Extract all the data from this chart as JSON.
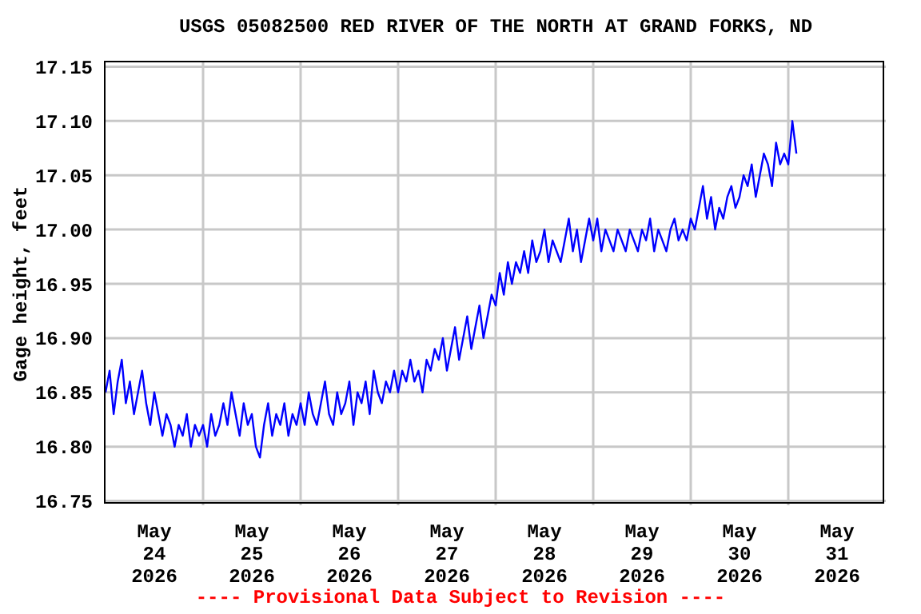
{
  "chart_data": {
    "type": "line",
    "title": "USGS 05082500 RED RIVER OF THE NORTH AT GRAND FORKS, ND",
    "ylabel": "Gage height, feet",
    "annotations": [
      "---- Provisional Data Subject to Revision ----"
    ],
    "grid": true,
    "marker": "none",
    "line_style": "solid",
    "xlim": [
      "2026-05-24T00:00",
      "2026-06-01T00:00"
    ],
    "xticks": [
      {
        "value": "2026-05-24T12:00",
        "label": "May\n24\n2026"
      },
      {
        "value": "2026-05-25T00:00",
        "label": null
      },
      {
        "value": "2026-05-25T12:00",
        "label": "May\n25\n2026"
      },
      {
        "value": "2026-05-26T00:00",
        "label": null
      },
      {
        "value": "2026-05-26T12:00",
        "label": "May\n26\n2026"
      },
      {
        "value": "2026-05-27T00:00",
        "label": null
      },
      {
        "value": "2026-05-27T12:00",
        "label": "May\n27\n2026"
      },
      {
        "value": "2026-05-28T00:00",
        "label": null
      },
      {
        "value": "2026-05-28T12:00",
        "label": "May\n28\n2026"
      },
      {
        "value": "2026-05-29T00:00",
        "label": null
      },
      {
        "value": "2026-05-29T12:00",
        "label": "May\n29\n2026"
      },
      {
        "value": "2026-05-30T00:00",
        "label": null
      },
      {
        "value": "2026-05-30T12:00",
        "label": "May\n30\n2026"
      },
      {
        "value": "2026-05-31T00:00",
        "label": null
      },
      {
        "value": "2026-05-31T12:00",
        "label": "May\n31\n2026"
      }
    ],
    "ylim": [
      16.746,
      17.154
    ],
    "yticks": [
      {
        "value": 16.75,
        "label": "16.75"
      },
      {
        "value": 16.8,
        "label": "16.80"
      },
      {
        "value": 16.85,
        "label": "16.85"
      },
      {
        "value": 16.9,
        "label": "16.90"
      },
      {
        "value": 16.95,
        "label": "16.95"
      },
      {
        "value": 17,
        "label": "17.00"
      },
      {
        "value": 17.05,
        "label": "17.05"
      },
      {
        "value": 17.1,
        "label": "17.10"
      },
      {
        "value": 17.15,
        "label": "17.15"
      }
    ],
    "series": [
      {
        "color": "#0000ff",
        "x": [
          "2026-05-24T00:00",
          "2026-05-24T01:00",
          "2026-05-24T02:00",
          "2026-05-24T03:00",
          "2026-05-24T04:00",
          "2026-05-24T05:00",
          "2026-05-24T06:00",
          "2026-05-24T07:00",
          "2026-05-24T08:00",
          "2026-05-24T09:00",
          "2026-05-24T10:00",
          "2026-05-24T11:00",
          "2026-05-24T12:00",
          "2026-05-24T13:00",
          "2026-05-24T14:00",
          "2026-05-24T15:00",
          "2026-05-24T16:00",
          "2026-05-24T17:00",
          "2026-05-24T18:00",
          "2026-05-24T19:00",
          "2026-05-24T20:00",
          "2026-05-24T21:00",
          "2026-05-24T22:00",
          "2026-05-24T23:00",
          "2026-05-25T00:00",
          "2026-05-25T01:00",
          "2026-05-25T02:00",
          "2026-05-25T03:00",
          "2026-05-25T04:00",
          "2026-05-25T05:00",
          "2026-05-25T06:00",
          "2026-05-25T07:00",
          "2026-05-25T08:00",
          "2026-05-25T09:00",
          "2026-05-25T10:00",
          "2026-05-25T11:00",
          "2026-05-25T12:00",
          "2026-05-25T13:00",
          "2026-05-25T14:00",
          "2026-05-25T15:00",
          "2026-05-25T16:00",
          "2026-05-25T17:00",
          "2026-05-25T18:00",
          "2026-05-25T19:00",
          "2026-05-25T20:00",
          "2026-05-25T21:00",
          "2026-05-25T22:00",
          "2026-05-25T23:00",
          "2026-05-26T00:00",
          "2026-05-26T01:00",
          "2026-05-26T02:00",
          "2026-05-26T03:00",
          "2026-05-26T04:00",
          "2026-05-26T05:00",
          "2026-05-26T06:00",
          "2026-05-26T07:00",
          "2026-05-26T08:00",
          "2026-05-26T09:00",
          "2026-05-26T10:00",
          "2026-05-26T11:00",
          "2026-05-26T12:00",
          "2026-05-26T13:00",
          "2026-05-26T14:00",
          "2026-05-26T15:00",
          "2026-05-26T16:00",
          "2026-05-26T17:00",
          "2026-05-26T18:00",
          "2026-05-26T19:00",
          "2026-05-26T20:00",
          "2026-05-26T21:00",
          "2026-05-26T22:00",
          "2026-05-26T23:00",
          "2026-05-27T00:00",
          "2026-05-27T01:00",
          "2026-05-27T02:00",
          "2026-05-27T03:00",
          "2026-05-27T04:00",
          "2026-05-27T05:00",
          "2026-05-27T06:00",
          "2026-05-27T07:00",
          "2026-05-27T08:00",
          "2026-05-27T09:00",
          "2026-05-27T10:00",
          "2026-05-27T11:00",
          "2026-05-27T12:00",
          "2026-05-27T13:00",
          "2026-05-27T14:00",
          "2026-05-27T15:00",
          "2026-05-27T16:00",
          "2026-05-27T17:00",
          "2026-05-27T18:00",
          "2026-05-27T19:00",
          "2026-05-27T20:00",
          "2026-05-27T21:00",
          "2026-05-27T22:00",
          "2026-05-27T23:00",
          "2026-05-28T00:00",
          "2026-05-28T01:00",
          "2026-05-28T02:00",
          "2026-05-28T03:00",
          "2026-05-28T04:00",
          "2026-05-28T05:00",
          "2026-05-28T06:00",
          "2026-05-28T07:00",
          "2026-05-28T08:00",
          "2026-05-28T09:00",
          "2026-05-28T10:00",
          "2026-05-28T11:00",
          "2026-05-28T12:00",
          "2026-05-28T13:00",
          "2026-05-28T14:00",
          "2026-05-28T15:00",
          "2026-05-28T16:00",
          "2026-05-28T17:00",
          "2026-05-28T18:00",
          "2026-05-28T19:00",
          "2026-05-28T20:00",
          "2026-05-28T21:00",
          "2026-05-28T22:00",
          "2026-05-28T23:00",
          "2026-05-29T00:00",
          "2026-05-29T01:00",
          "2026-05-29T02:00",
          "2026-05-29T03:00",
          "2026-05-29T04:00",
          "2026-05-29T05:00",
          "2026-05-29T06:00",
          "2026-05-29T07:00",
          "2026-05-29T08:00",
          "2026-05-29T09:00",
          "2026-05-29T10:00",
          "2026-05-29T11:00",
          "2026-05-29T12:00",
          "2026-05-29T13:00",
          "2026-05-29T14:00",
          "2026-05-29T15:00",
          "2026-05-29T16:00",
          "2026-05-29T17:00",
          "2026-05-29T18:00",
          "2026-05-29T19:00",
          "2026-05-29T20:00",
          "2026-05-29T21:00",
          "2026-05-29T22:00",
          "2026-05-29T23:00",
          "2026-05-30T00:00",
          "2026-05-30T01:00",
          "2026-05-30T02:00",
          "2026-05-30T03:00",
          "2026-05-30T04:00",
          "2026-05-30T05:00",
          "2026-05-30T06:00",
          "2026-05-30T07:00",
          "2026-05-30T08:00",
          "2026-05-30T09:00",
          "2026-05-30T10:00",
          "2026-05-30T11:00",
          "2026-05-30T12:00",
          "2026-05-30T13:00",
          "2026-05-30T14:00",
          "2026-05-30T15:00",
          "2026-05-30T16:00",
          "2026-05-30T17:00",
          "2026-05-30T18:00",
          "2026-05-30T19:00",
          "2026-05-30T20:00",
          "2026-05-30T21:00",
          "2026-05-30T22:00",
          "2026-05-30T23:00",
          "2026-05-31T00:00",
          "2026-05-31T01:00",
          "2026-05-31T02:00"
        ],
        "values": [
          16.85,
          16.87,
          16.83,
          16.86,
          16.88,
          16.84,
          16.86,
          16.83,
          16.85,
          16.87,
          16.84,
          16.82,
          16.85,
          16.83,
          16.81,
          16.83,
          16.82,
          16.8,
          16.82,
          16.81,
          16.83,
          16.8,
          16.82,
          16.81,
          16.82,
          16.8,
          16.83,
          16.81,
          16.82,
          16.84,
          16.82,
          16.85,
          16.83,
          16.81,
          16.84,
          16.82,
          16.83,
          16.8,
          16.79,
          16.82,
          16.84,
          16.81,
          16.83,
          16.82,
          16.84,
          16.81,
          16.83,
          16.82,
          16.84,
          16.82,
          16.85,
          16.83,
          16.82,
          16.84,
          16.86,
          16.83,
          16.82,
          16.85,
          16.83,
          16.84,
          16.86,
          16.82,
          16.85,
          16.84,
          16.86,
          16.83,
          16.87,
          16.85,
          16.84,
          16.86,
          16.85,
          16.87,
          16.85,
          16.87,
          16.86,
          16.88,
          16.86,
          16.87,
          16.85,
          16.88,
          16.87,
          16.89,
          16.88,
          16.9,
          16.87,
          16.89,
          16.91,
          16.88,
          16.9,
          16.92,
          16.89,
          16.91,
          16.93,
          16.9,
          16.92,
          16.94,
          16.93,
          16.96,
          16.94,
          16.97,
          16.95,
          16.97,
          16.96,
          16.98,
          16.96,
          16.99,
          16.97,
          16.98,
          17.0,
          16.97,
          16.99,
          16.98,
          16.97,
          16.99,
          17.01,
          16.98,
          17.0,
          16.97,
          16.99,
          17.01,
          16.99,
          17.01,
          16.98,
          17.0,
          16.99,
          16.98,
          17.0,
          16.99,
          16.98,
          17.0,
          16.99,
          16.98,
          17.0,
          16.99,
          17.01,
          16.98,
          17.0,
          16.99,
          16.98,
          17.0,
          17.01,
          16.99,
          17.0,
          16.99,
          17.01,
          17.0,
          17.02,
          17.04,
          17.01,
          17.03,
          17.0,
          17.02,
          17.01,
          17.03,
          17.04,
          17.02,
          17.03,
          17.05,
          17.04,
          17.06,
          17.03,
          17.05,
          17.07,
          17.06,
          17.04,
          17.08,
          17.06,
          17.07,
          17.06,
          17.1,
          17.07
        ]
      }
    ]
  }
}
